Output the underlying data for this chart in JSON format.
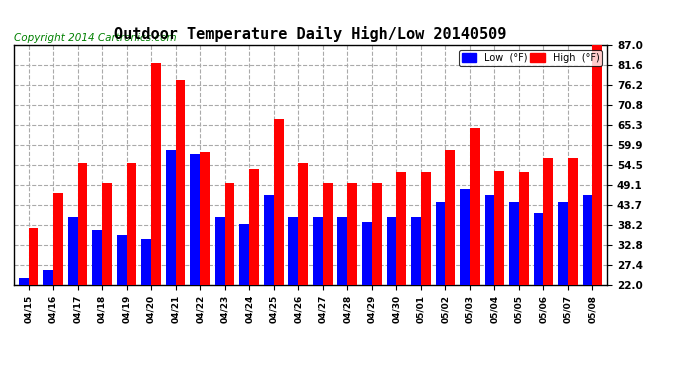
{
  "title": "Outdoor Temperature Daily High/Low 20140509",
  "copyright": "Copyright 2014 Cartronics.com",
  "legend_low": "Low  (°F)",
  "legend_high": "High  (°F)",
  "dates": [
    "04/15",
    "04/16",
    "04/17",
    "04/18",
    "04/19",
    "04/20",
    "04/21",
    "04/22",
    "04/23",
    "04/24",
    "04/25",
    "04/26",
    "04/27",
    "04/28",
    "04/29",
    "04/30",
    "05/01",
    "05/02",
    "05/03",
    "05/04",
    "05/05",
    "05/06",
    "05/07",
    "05/08"
  ],
  "highs": [
    37.5,
    47.0,
    55.0,
    49.5,
    55.0,
    82.0,
    77.5,
    58.0,
    49.5,
    53.5,
    67.0,
    55.0,
    49.5,
    49.5,
    49.5,
    52.5,
    52.5,
    58.5,
    64.5,
    53.0,
    52.5,
    56.5,
    56.5,
    87.0
  ],
  "lows": [
    24.0,
    26.0,
    40.5,
    37.0,
    35.5,
    34.5,
    58.5,
    57.5,
    40.5,
    38.5,
    46.5,
    40.5,
    40.5,
    40.5,
    39.0,
    40.5,
    40.5,
    44.5,
    48.0,
    46.5,
    44.5,
    41.5,
    44.5,
    46.5
  ],
  "ylim_min": 22.0,
  "ylim_max": 87.0,
  "yticks": [
    22.0,
    27.4,
    32.8,
    38.2,
    43.7,
    49.1,
    54.5,
    59.9,
    65.3,
    70.8,
    76.2,
    81.6,
    87.0
  ],
  "bar_width": 0.4,
  "high_color": "#ff0000",
  "low_color": "#0000ff",
  "bg_color": "#ffffff",
  "grid_color": "#aaaaaa",
  "title_fontsize": 11,
  "copyright_fontsize": 7.5
}
